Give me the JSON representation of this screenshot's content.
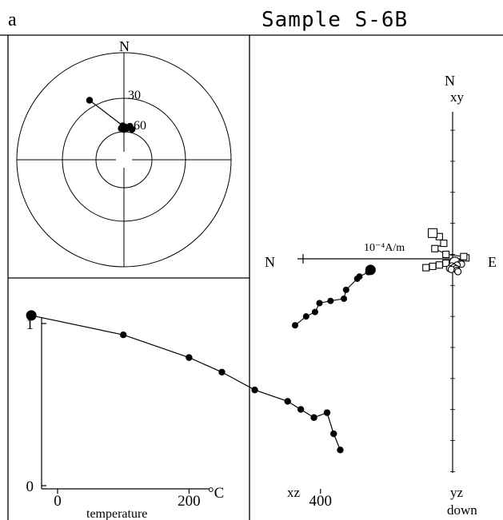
{
  "header": {
    "panel_letter": "a",
    "sample_title": "Sample S-6B"
  },
  "chart_data": [
    {
      "type": "scatter",
      "subtype": "equal-area stereonet",
      "north_label": "N",
      "inclination_ring_labels": [
        "30",
        "60"
      ],
      "rings_inclination": [
        30,
        60
      ],
      "points": [
        {
          "declination": 330,
          "inclination": 36
        },
        {
          "declination": 358,
          "inclination": 64
        },
        {
          "declination": 2,
          "inclination": 65
        },
        {
          "declination": 10,
          "inclination": 64
        },
        {
          "declination": 355,
          "inclination": 66
        },
        {
          "declination": 5,
          "inclination": 66
        },
        {
          "declination": 0,
          "inclination": 67
        },
        {
          "declination": 15,
          "inclination": 66
        }
      ]
    },
    {
      "type": "line",
      "subtype": "demagnetization curve",
      "xlabel": "temperature",
      "xunit": "°C",
      "xticks": [
        0,
        200,
        400
      ],
      "yticks": [
        0,
        1
      ],
      "xlim": [
        -50,
        450
      ],
      "ylim": [
        0,
        1.1
      ],
      "x": [
        -40,
        100,
        200,
        250,
        300,
        350,
        370,
        390,
        410,
        420,
        430
      ],
      "y": [
        1.05,
        0.93,
        0.79,
        0.7,
        0.59,
        0.52,
        0.47,
        0.42,
        0.45,
        0.32,
        0.22
      ]
    },
    {
      "type": "line",
      "subtype": "orthogonal vector (Zijderveld) diagram",
      "north_label_top": "N",
      "axis_left_label": "N",
      "axis_right_label": "E",
      "scale_label": "10⁻⁴A/m",
      "projections": [
        {
          "name": "xy",
          "marker": "open-square",
          "points": [
            [
              4.5,
              -1.7
            ],
            [
              6.0,
              -2.0
            ],
            [
              3.0,
              -1.4
            ],
            [
              1.5,
              -1.0
            ],
            [
              -3.0,
              0.2
            ],
            [
              -2.5,
              0.5
            ],
            [
              1.5,
              1.0
            ],
            [
              4.0,
              2.3
            ],
            [
              2.0,
              3.5
            ],
            [
              3.0,
              5.0
            ],
            [
              4.5,
              5.8
            ]
          ]
        },
        {
          "name": "xz",
          "marker": "filled-circle",
          "points": [
            [
              18.5,
              -2.5
            ],
            [
              19.0,
              -3.0
            ],
            [
              21.0,
              -4.0
            ],
            [
              21.5,
              -4.5
            ],
            [
              24.0,
              -7.0
            ],
            [
              24.5,
              -9.0
            ],
            [
              27.5,
              -9.5
            ],
            [
              30.0,
              -10.0
            ],
            [
              31.0,
              -12.0
            ],
            [
              33.0,
              -13.0
            ],
            [
              35.5,
              -15.0
            ]
          ]
        },
        {
          "name": "yz",
          "marker": "open-circle",
          "points": [
            [
              -0.5,
              -0.8
            ],
            [
              -1.8,
              -1.0
            ],
            [
              -2.0,
              -1.2
            ],
            [
              -1.0,
              -1.4
            ],
            [
              0.2,
              -1.6
            ],
            [
              -0.3,
              -1.9
            ],
            [
              -0.8,
              -2.2
            ],
            [
              0.7,
              -2.2
            ],
            [
              0.3,
              -2.4
            ],
            [
              -1.0,
              -2.6
            ],
            [
              -1.2,
              -2.9
            ]
          ]
        }
      ],
      "down_label": "down"
    }
  ]
}
